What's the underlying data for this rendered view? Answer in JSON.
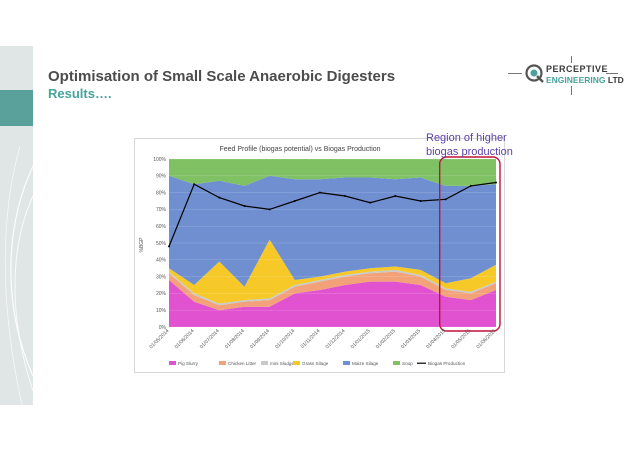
{
  "slide": {
    "title": "Optimisation of Small Scale Anaerobic Digesters",
    "subtitle": "Results….",
    "callout_line1": "Region of higher",
    "callout_line2": "biogas production"
  },
  "logo": {
    "name_line1": "PERCEPTIVE",
    "name_line2a": "ENGINEERING",
    "name_line2b": "LTD",
    "icon": "q-gear-icon",
    "accent": "#4aa39b"
  },
  "chart_data": {
    "type": "area",
    "title": "Feed Profile (biogas potential) vs Biogas Production",
    "ylabel": "%BGP",
    "ylim": [
      0,
      100
    ],
    "y_ticks": [
      "0%",
      "10%",
      "20%",
      "30%",
      "40%",
      "50%",
      "60%",
      "70%",
      "80%",
      "90%",
      "100%"
    ],
    "x_ticks": [
      "01/05/2014",
      "01/06/2014",
      "01/07/2014",
      "01/08/2014",
      "01/09/2014",
      "01/10/2014",
      "01/11/2014",
      "01/12/2014",
      "01/01/2015",
      "01/02/2015",
      "01/03/2015",
      "01/04/2015",
      "01/05/2015",
      "01/06/2015"
    ],
    "x": [
      "May-14",
      "Jun-14",
      "Jul-14",
      "Aug-14",
      "Sep-14",
      "Oct-14",
      "Nov-14",
      "Dec-14",
      "Jan-15",
      "Feb-15",
      "Mar-15",
      "Apr-15",
      "May-15",
      "Jun-15"
    ],
    "series": [
      {
        "name": "Pig Slurry",
        "color": "#e052cf",
        "values": [
          28,
          15,
          10,
          12,
          12,
          20,
          22,
          25,
          27,
          27,
          25,
          18,
          16,
          22
        ]
      },
      {
        "name": "Chicken Litter",
        "color": "#f2a178",
        "values": [
          4,
          4,
          3,
          3,
          4,
          4,
          5,
          5,
          5,
          6,
          5,
          4,
          4,
          4
        ]
      },
      {
        "name": "mini Sludge",
        "color": "#c9c9c9",
        "values": [
          1,
          1,
          1,
          1,
          1,
          1,
          1,
          1,
          1,
          1,
          1,
          1,
          1,
          1
        ]
      },
      {
        "name": "Grass Silage",
        "color": "#f7c928",
        "values": [
          2,
          5,
          25,
          8,
          35,
          3,
          2,
          2,
          2,
          2,
          3,
          3,
          8,
          10
        ]
      },
      {
        "name": "Maize Silage",
        "color": "#6f8fd0",
        "values": [
          55,
          60,
          48,
          60,
          38,
          60,
          58,
          56,
          54,
          52,
          55,
          58,
          55,
          48
        ]
      },
      {
        "name": "Soup",
        "color": "#80c164",
        "values": [
          10,
          15,
          13,
          16,
          10,
          12,
          12,
          11,
          11,
          12,
          11,
          16,
          16,
          15
        ]
      }
    ],
    "line_series": {
      "name": "Biogas Production",
      "color": "#000000",
      "values": [
        48,
        85,
        77,
        72,
        70,
        75,
        80,
        78,
        74,
        78,
        75,
        76,
        84,
        86
      ]
    },
    "highlight": {
      "label": "Region of higher biogas production",
      "from": "01/04/2015",
      "to": "end",
      "color": "#c0143c"
    },
    "legend_position": "bottom"
  }
}
